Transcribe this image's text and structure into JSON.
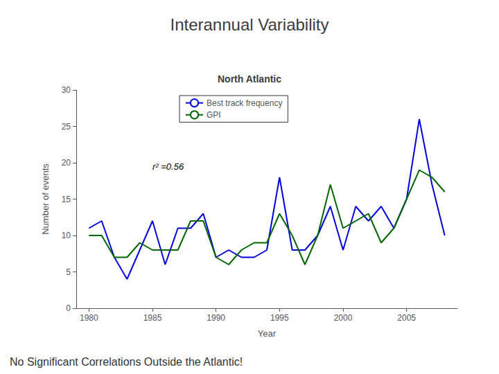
{
  "chart_data": {
    "type": "line",
    "title": "Interannual Variability",
    "subtitle": "North Atlantic",
    "xlabel": "Year",
    "ylabel": "Number of events",
    "annotation": "r² =0.56",
    "caption": "No Significant Correlations Outside the Atlantic!",
    "x": [
      1980,
      1981,
      1982,
      1983,
      1984,
      1985,
      1986,
      1987,
      1988,
      1989,
      1990,
      1991,
      1992,
      1993,
      1994,
      1995,
      1996,
      1997,
      1998,
      1999,
      2000,
      2001,
      2002,
      2003,
      2004,
      2005,
      2006,
      2007,
      2008
    ],
    "series": [
      {
        "name": "Best track frequency",
        "color": "#0000dd",
        "values": [
          11,
          12,
          7,
          4,
          8,
          12,
          6,
          11,
          11,
          13,
          7,
          8,
          7,
          7,
          8,
          18,
          8,
          8,
          10,
          14,
          8,
          14,
          12,
          14,
          11,
          15,
          26,
          17,
          10
        ]
      },
      {
        "name": "GPI",
        "color": "#006600",
        "values": [
          10,
          10,
          7,
          7,
          9,
          8,
          8,
          8,
          12,
          12,
          7,
          6,
          8,
          9,
          9,
          13,
          10,
          6,
          10,
          17,
          11,
          12,
          13,
          9,
          11,
          15,
          19,
          18,
          16
        ]
      }
    ],
    "xlim": [
      1979,
      2009
    ],
    "xticks": [
      1980,
      1985,
      1990,
      1995,
      2000,
      2005
    ],
    "ylim": [
      0,
      30
    ],
    "yticks": [
      0,
      5,
      10,
      15,
      20,
      25,
      30
    ],
    "grid": false,
    "legend": "upper left"
  }
}
